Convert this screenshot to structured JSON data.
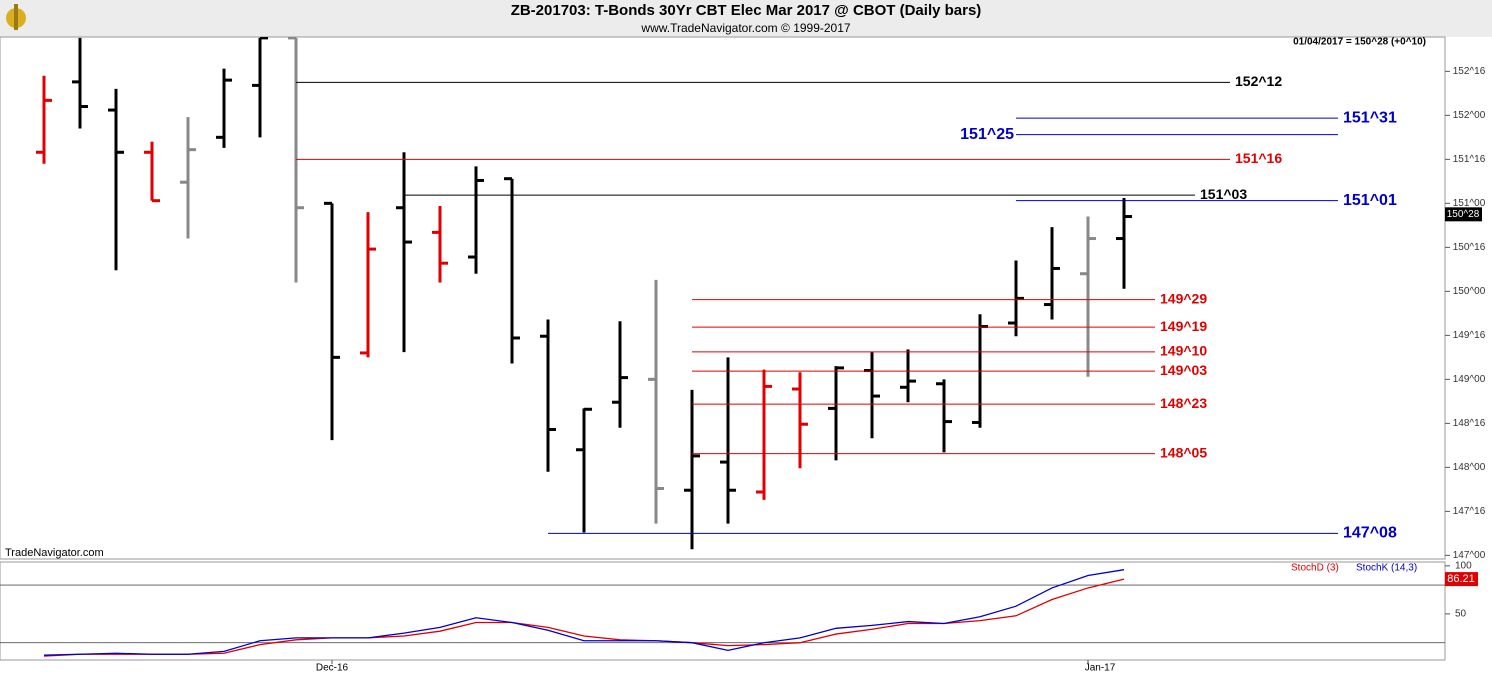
{
  "header": {
    "title": "ZB-201703:  T-Bonds 30Yr CBT Elec Mar 2017 @ CBOT  (Daily bars)",
    "subtitle": "www.TradeNavigator.com © 1999-2017",
    "quote": "01/04/2017 = 150^28 (+0^10)",
    "watermark": "TradeNavigator.com"
  },
  "chart_data": [
    {
      "type": "ohlc",
      "categories": [
        null,
        null,
        null,
        null,
        null,
        null,
        null,
        null,
        "Dec-16",
        null,
        null,
        null,
        null,
        null,
        null,
        null,
        null,
        null,
        null,
        null,
        null,
        null,
        null,
        null,
        null,
        null,
        null,
        null,
        null,
        "Jan-17",
        null
      ],
      "open": [
        151.58,
        152.38,
        152.06,
        151.58,
        151.24,
        151.75,
        152.34,
        152.88,
        151.0,
        149.3,
        150.95,
        150.67,
        150.39,
        151.28,
        149.49,
        148.2,
        148.74,
        149.0,
        147.74,
        148.06,
        147.72,
        148.89,
        148.67,
        149.1,
        148.91,
        148.95,
        148.51,
        149.64,
        149.85,
        150.2,
        150.6
      ],
      "high": [
        152.45,
        152.88,
        152.3,
        151.7,
        151.98,
        152.53,
        152.88,
        152.88,
        151.0,
        150.9,
        151.58,
        150.97,
        151.42,
        151.28,
        149.68,
        148.67,
        149.66,
        150.13,
        148.88,
        149.25,
        149.11,
        149.08,
        149.15,
        149.31,
        149.34,
        149.0,
        149.74,
        150.35,
        150.73,
        150.85,
        151.06
      ],
      "low": [
        151.45,
        151.85,
        150.24,
        151.03,
        150.6,
        151.63,
        151.75,
        150.1,
        148.31,
        149.25,
        149.31,
        150.1,
        150.2,
        149.18,
        147.95,
        147.26,
        148.45,
        147.36,
        147.07,
        147.36,
        147.63,
        147.99,
        148.08,
        148.33,
        148.74,
        148.17,
        148.45,
        149.49,
        149.68,
        149.03,
        150.03
      ],
      "close": [
        152.17,
        152.1,
        151.58,
        151.03,
        151.61,
        152.4,
        152.88,
        150.95,
        149.25,
        150.48,
        150.56,
        150.32,
        151.26,
        149.47,
        148.43,
        148.66,
        149.02,
        147.76,
        148.13,
        147.74,
        148.92,
        148.49,
        149.13,
        148.81,
        148.98,
        148.52,
        149.6,
        149.92,
        150.26,
        150.6,
        150.85
      ],
      "bar_colors": [
        "#e00000",
        "#000000",
        "#000000",
        "#e00000",
        "#888888",
        "#000000",
        "#000000",
        "#888888",
        "#000000",
        "#e00000",
        "#000000",
        "#e00000",
        "#000000",
        "#000000",
        "#000000",
        "#000000",
        "#000000",
        "#888888",
        "#000000",
        "#000000",
        "#e00000",
        "#e00000",
        "#000000",
        "#000000",
        "#000000",
        "#000000",
        "#000000",
        "#000000",
        "#000000",
        "#888888",
        "#000000"
      ],
      "levels": [
        {
          "value": 152.375,
          "label": "152^12",
          "color": "#000000"
        },
        {
          "value": 151.96875,
          "label": "151^31",
          "color": "#0000cc"
        },
        {
          "value": 151.78125,
          "label": "151^25",
          "color": "#0000cc"
        },
        {
          "value": 151.5,
          "label": "151^16",
          "color": "#e00000"
        },
        {
          "value": 151.09375,
          "label": "151^03",
          "color": "#000000"
        },
        {
          "value": 151.03125,
          "label": "151^01",
          "color": "#0000cc"
        },
        {
          "value": 149.90625,
          "label": "149^29",
          "color": "#e00000"
        },
        {
          "value": 149.59375,
          "label": "149^19",
          "color": "#e00000"
        },
        {
          "value": 149.3125,
          "label": "149^10",
          "color": "#e00000"
        },
        {
          "value": 149.09375,
          "label": "149^03",
          "color": "#e00000"
        },
        {
          "value": 148.71875,
          "label": "148^23",
          "color": "#e00000"
        },
        {
          "value": 148.15625,
          "label": "148^05",
          "color": "#e00000"
        },
        {
          "value": 147.25,
          "label": "147^08",
          "color": "#0000cc"
        }
      ],
      "last": {
        "value": 150.875,
        "label": "150^28"
      },
      "ylim": [
        146.97,
        152.89
      ],
      "yticks": [
        {
          "value": 147,
          "label": "147^00"
        },
        {
          "value": 147.5,
          "label": "147^16"
        },
        {
          "value": 148,
          "label": "148^00"
        },
        {
          "value": 148.5,
          "label": "148^16"
        },
        {
          "value": 149,
          "label": "149^00"
        },
        {
          "value": 149.5,
          "label": "149^16"
        },
        {
          "value": 150,
          "label": "150^00"
        },
        {
          "value": 150.5,
          "label": "150^16"
        },
        {
          "value": 151,
          "label": "151^00"
        },
        {
          "value": 151.5,
          "label": "151^16"
        },
        {
          "value": 152,
          "label": "152^00"
        },
        {
          "value": 152.5,
          "label": "152^16"
        }
      ]
    },
    {
      "type": "line",
      "series": [
        {
          "name": "StochD (3)",
          "color": "#e00000",
          "values": [
            6,
            8,
            8,
            8,
            8,
            9,
            18,
            23,
            25,
            25,
            27,
            32,
            41,
            41,
            36,
            27,
            23,
            22,
            20,
            17,
            18,
            20,
            29,
            34,
            40,
            40,
            43,
            48,
            65,
            77,
            86.21
          ],
          "value_labels": [
            null,
            null,
            null,
            null,
            null,
            null,
            null,
            null,
            null,
            null,
            null,
            null,
            null,
            null,
            null,
            null,
            null,
            null,
            null,
            null,
            null,
            null,
            null,
            null,
            null,
            null,
            null,
            null,
            null,
            null,
            "86.21"
          ]
        },
        {
          "name": "StochK (14,3)",
          "color": "#0000cc",
          "values": [
            7,
            8,
            9,
            8,
            8,
            11,
            22,
            25,
            25,
            25,
            30,
            36,
            46,
            41,
            33,
            22,
            22,
            22,
            20,
            12,
            20,
            25,
            35,
            38,
            42,
            40,
            47,
            58,
            77,
            90,
            96
          ]
        }
      ],
      "levels": [
        20,
        80
      ],
      "ylim": [
        2,
        104
      ],
      "yticks": [
        50,
        100
      ]
    }
  ]
}
